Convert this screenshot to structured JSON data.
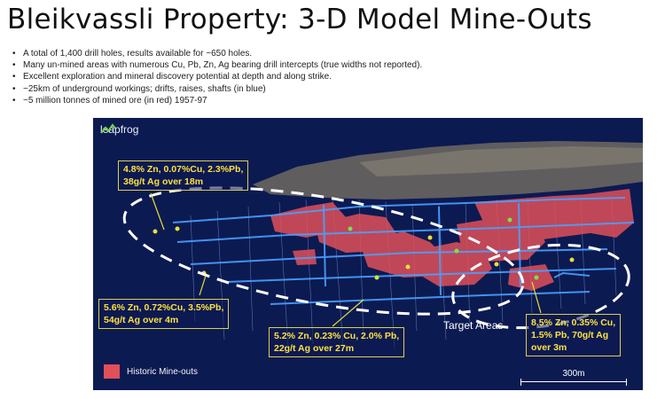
{
  "title": "Bleikvassli Property: 3-D Model Mine-Outs",
  "bullets": [
    "A total of 1,400 drill holes, results available for ~650 holes.",
    "Many un-mined areas with numerous Cu, Pb, Zn, Ag bearing drill intercepts (true widths not reported).",
    "Excellent exploration and mineral discovery potential at depth and along strike.",
    "~25km of underground workings; drifts, raises, shafts (in blue)",
    "~5 million tonnes of mined ore (in red) 1957-97"
  ],
  "model": {
    "logo_text": "leapfrog",
    "logo_icon": "leapfrog-logo-icon",
    "callouts": [
      {
        "line1": "4.8% Zn,  0.07%Cu,  2.3%Pb,",
        "line2": "38g/t Ag over 18m"
      },
      {
        "line1": "5.6% Zn,  0.72%Cu,  3.5%Pb,",
        "line2": "54g/t Ag over 4m"
      },
      {
        "line1": "5.2% Zn,  0.23% Cu,  2.0% Pb,",
        "line2": "22g/t Ag over 27m"
      },
      {
        "line1": "8.5% Zn,  0.35% Cu,",
        "line2": "1.5% Pb, 70g/t Ag",
        "line3": "over 3m"
      }
    ],
    "target_areas_label": "Target Areas",
    "legend_label": "Historic Mine-outs",
    "scale_label": "300m",
    "colors": {
      "background": "#0c1a52",
      "mine_outs": "#e0505a",
      "workings": "#4aa0ff",
      "callout_text": "#ffe23c"
    }
  }
}
